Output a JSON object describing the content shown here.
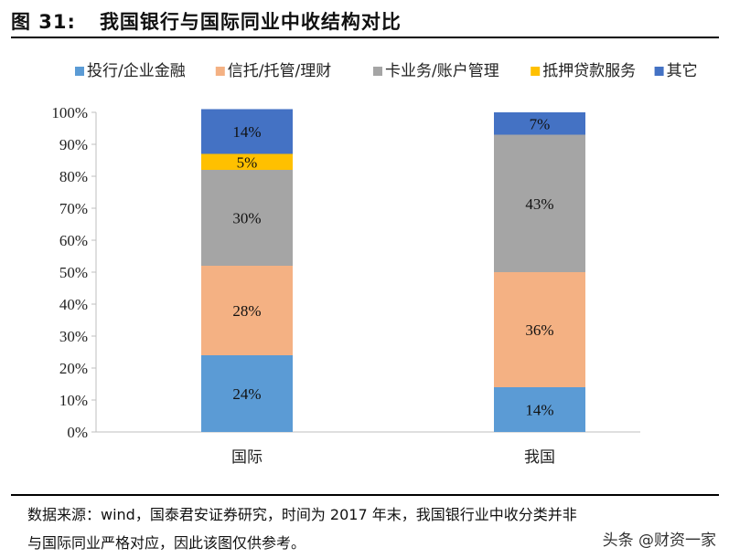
{
  "figure": {
    "label": "图 31:",
    "title": "我国银行与国际同业中收结构对比"
  },
  "chart_data": {
    "type": "bar",
    "stacked": true,
    "percent": true,
    "categories": [
      "国际",
      "我国"
    ],
    "series": [
      {
        "name": "投行/企业金融",
        "color": "#5B9BD5",
        "values": [
          24,
          14
        ]
      },
      {
        "name": "信托/托管/理财",
        "color": "#F4B183",
        "values": [
          28,
          36
        ]
      },
      {
        "name": "卡业务/账户管理",
        "color": "#A5A5A5",
        "values": [
          30,
          43
        ]
      },
      {
        "name": "抵押贷款服务",
        "color": "#FFC000",
        "values": [
          5,
          0
        ]
      },
      {
        "name": "其它",
        "color": "#4472C4",
        "values": [
          14,
          7
        ]
      }
    ],
    "ylim": [
      0,
      100
    ],
    "yticks": [
      "0%",
      "10%",
      "20%",
      "30%",
      "40%",
      "50%",
      "60%",
      "70%",
      "80%",
      "90%",
      "100%"
    ],
    "legend": "top",
    "grid": false
  },
  "footer": {
    "source_line1": "数据来源：wind，国泰君安证券研究，时间为 2017 年末，我国银行业中收分类并非",
    "source_line2": "与国际同业严格对应，因此该图仅供参考。",
    "watermark": "头条 @财资一家"
  }
}
